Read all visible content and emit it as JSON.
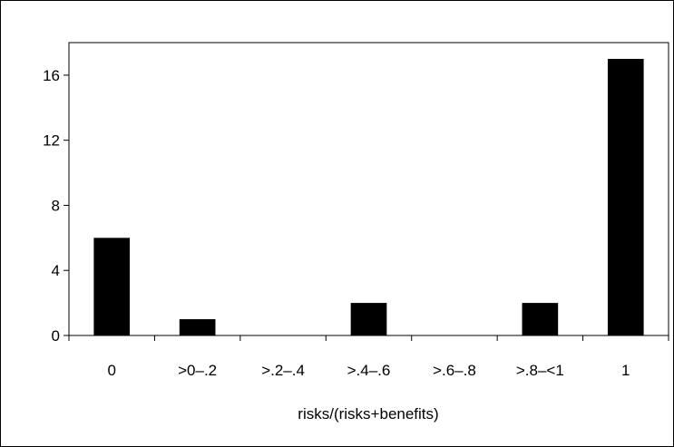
{
  "chart_data": {
    "type": "bar",
    "title": "",
    "xlabel": "risks/(risks+benefits)",
    "ylabel": "",
    "categories": [
      "0",
      ">0–.2",
      ">.2–.4",
      ">.4–.6",
      ">.6–.8",
      ">.8–<1",
      "1"
    ],
    "values": [
      6,
      1,
      0,
      2,
      0,
      2,
      17
    ],
    "ylim": [
      0,
      18
    ],
    "yticks": [
      0,
      4,
      8,
      12,
      16
    ],
    "ytick_labels": [
      "0",
      "4",
      "8",
      "12",
      "16"
    ],
    "grid": false,
    "legend": "none",
    "bar_color": "#000000"
  }
}
